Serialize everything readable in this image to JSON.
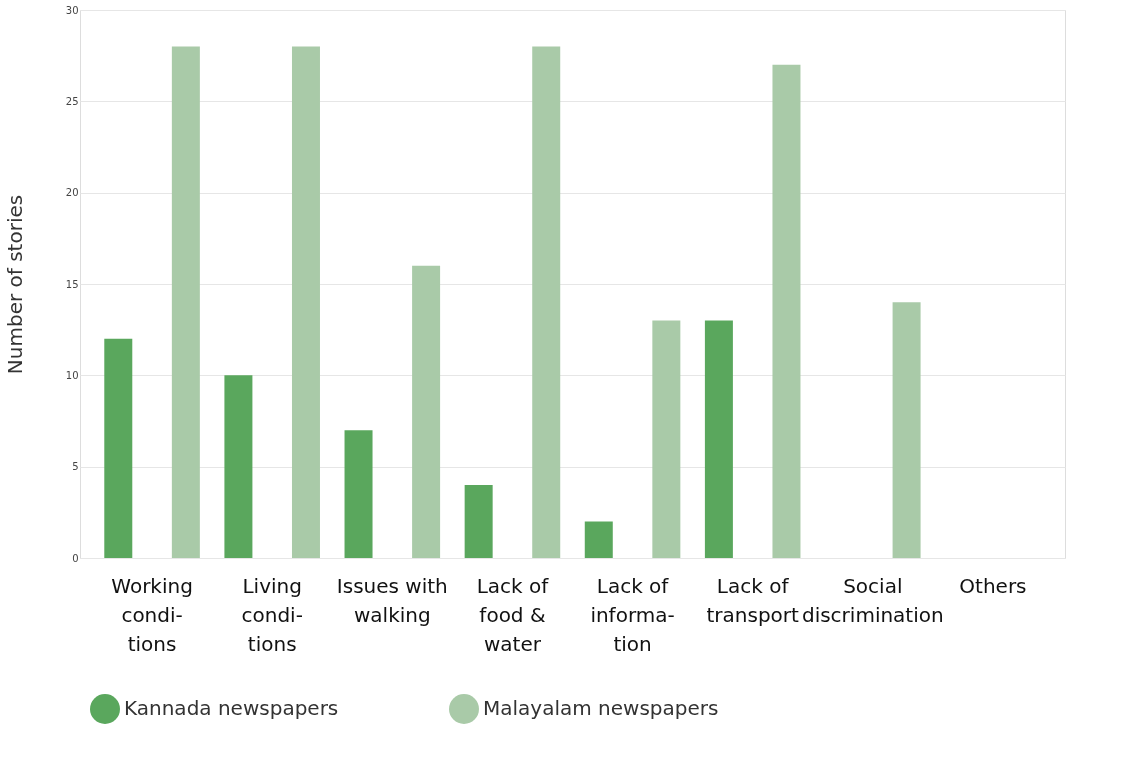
{
  "chart_data": {
    "type": "bar",
    "ylabel": "Number of stories",
    "categories": [
      "Working\ncondi-\ntions",
      "Living\ncondi-\ntions",
      "Issues with\nwalking",
      "Lack of\nfood &\nwater",
      "Lack of\ninforma-\ntion",
      "Lack of\ntransport",
      "Social\ndiscrimination",
      "Others"
    ],
    "series": [
      {
        "name": "Kannada newspapers",
        "color": "#5aa75d",
        "values": [
          12,
          10,
          7,
          4,
          2,
          13,
          0,
          0
        ]
      },
      {
        "name": "Malayalam newspapers",
        "color": "#a9caa8",
        "values": [
          28,
          28,
          16,
          28,
          13,
          27,
          14,
          0
        ]
      }
    ],
    "ylim": [
      0,
      30
    ],
    "yticks": [
      0,
      5,
      10,
      15,
      20,
      25,
      30
    ],
    "grid": "y",
    "legend": "bottom"
  }
}
